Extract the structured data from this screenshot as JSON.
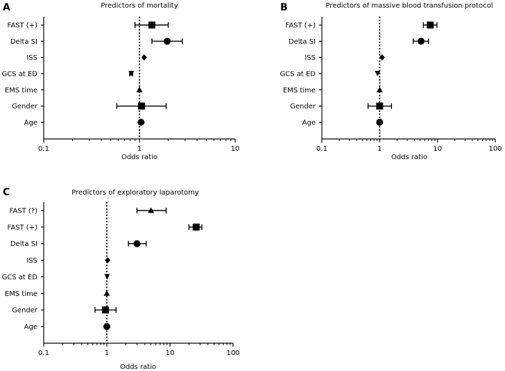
{
  "chart_data": [
    {
      "panel": "A",
      "type": "forest",
      "title": "Predictors of mortality",
      "xlabel": "Odds ratio",
      "xscale": "log",
      "xlim": [
        0.1,
        10
      ],
      "xticks": [
        "0.1",
        "1",
        "10"
      ],
      "reference_line": 1,
      "rows": [
        {
          "label": "FAST (+)",
          "or": 1.35,
          "lo": 0.9,
          "hi": 2.0,
          "marker": "square"
        },
        {
          "label": "Delta SI",
          "or": 1.95,
          "lo": 1.35,
          "hi": 2.8,
          "marker": "circle"
        },
        {
          "label": "ISS",
          "or": 1.12,
          "lo": 1.1,
          "hi": 1.15,
          "marker": "diamond"
        },
        {
          "label": "GCS at ED",
          "or": 0.82,
          "lo": 0.79,
          "hi": 0.85,
          "marker": "triangle-down"
        },
        {
          "label": "EMS time",
          "or": 1.0,
          "lo": 0.99,
          "hi": 1.01,
          "marker": "triangle-up"
        },
        {
          "label": "Gender",
          "or": 1.05,
          "lo": 0.58,
          "hi": 1.9,
          "marker": "square"
        },
        {
          "label": "Age",
          "or": 1.04,
          "lo": 1.02,
          "hi": 1.06,
          "marker": "circle"
        }
      ]
    },
    {
      "panel": "B",
      "type": "forest",
      "title": "Predictors of massive blood transfusion protocol",
      "xlabel": "Odds ratio",
      "xscale": "log",
      "xlim": [
        0.1,
        100
      ],
      "xticks": [
        "0.1",
        "1",
        "10",
        "100"
      ],
      "reference_line": 1,
      "rows": [
        {
          "label": "FAST (+)",
          "or": 7.5,
          "lo": 5.7,
          "hi": 9.8,
          "marker": "square"
        },
        {
          "label": "Delta SI",
          "or": 5.2,
          "lo": 3.8,
          "hi": 7.0,
          "marker": "circle"
        },
        {
          "label": "ISS",
          "or": 1.1,
          "lo": 1.08,
          "hi": 1.13,
          "marker": "diamond"
        },
        {
          "label": "GCS at ED",
          "or": 0.92,
          "lo": 0.9,
          "hi": 0.95,
          "marker": "triangle-down"
        },
        {
          "label": "EMS time",
          "or": 1.0,
          "lo": 0.99,
          "hi": 1.01,
          "marker": "triangle-up"
        },
        {
          "label": "Gender",
          "or": 1.0,
          "lo": 0.63,
          "hi": 1.6,
          "marker": "square"
        },
        {
          "label": "Age",
          "or": 1.0,
          "lo": 0.98,
          "hi": 1.02,
          "marker": "circle"
        }
      ]
    },
    {
      "panel": "C",
      "type": "forest",
      "title": "Predictors of exploratory laparotomy",
      "xlabel": "Odds ratio",
      "xscale": "log",
      "xlim": [
        0.1,
        100
      ],
      "xticks": [
        "0.1",
        "1",
        "10",
        "100"
      ],
      "reference_line": 1,
      "rows": [
        {
          "label": "FAST (?)",
          "or": 5.0,
          "lo": 3.0,
          "hi": 8.7,
          "marker": "triangle-up"
        },
        {
          "label": "FAST (+)",
          "or": 26,
          "lo": 20,
          "hi": 32,
          "marker": "square"
        },
        {
          "label": "Delta SI",
          "or": 3.0,
          "lo": 2.2,
          "hi": 4.2,
          "marker": "circle"
        },
        {
          "label": "ISS",
          "or": 1.03,
          "lo": 1.01,
          "hi": 1.05,
          "marker": "diamond"
        },
        {
          "label": "GCS at ED",
          "or": 1.01,
          "lo": 0.98,
          "hi": 1.04,
          "marker": "triangle-down"
        },
        {
          "label": "EMS time",
          "or": 1.0,
          "lo": 0.99,
          "hi": 1.01,
          "marker": "triangle-up"
        },
        {
          "label": "Gender",
          "or": 0.95,
          "lo": 0.65,
          "hi": 1.4,
          "marker": "square"
        },
        {
          "label": "Age",
          "or": 1.0,
          "lo": 0.98,
          "hi": 1.02,
          "marker": "circle"
        }
      ]
    }
  ]
}
